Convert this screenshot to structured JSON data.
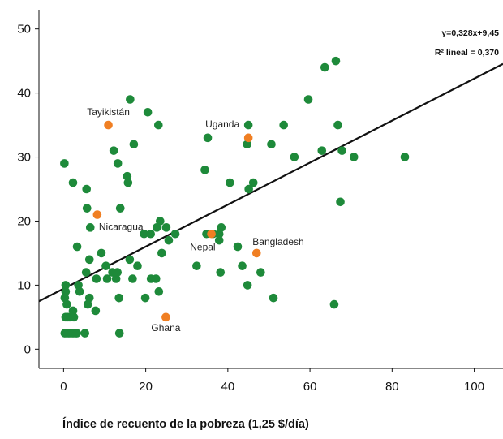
{
  "chart_data": {
    "type": "scatter",
    "xlabel": "Índice de recuento de la pobreza (1,25 $/día)",
    "ylabel": "",
    "xlim": [
      -6,
      107
    ],
    "ylim": [
      -3,
      53
    ],
    "xticks": [
      0,
      20,
      40,
      60,
      80,
      100
    ],
    "yticks": [
      0,
      10,
      20,
      30,
      40,
      50
    ],
    "grid": false,
    "regression": {
      "slope": 0.328,
      "intercept": 9.45,
      "equation": "y=0,328x+9,45",
      "r2_label": "R² lineal = 0,370"
    },
    "colors": {
      "points": "#1e8a3a",
      "highlight": "#f07f23",
      "line": "#111111"
    },
    "highlighted": [
      {
        "label": "Tayikistán",
        "x": 10.9,
        "y": 35
      },
      {
        "label": "Uganda",
        "x": 45,
        "y": 33
      },
      {
        "label": "Nicaragua",
        "x": 8.2,
        "y": 21
      },
      {
        "label": "Nepal",
        "x": 36,
        "y": 18
      },
      {
        "label": "Bangladesh",
        "x": 47,
        "y": 15
      },
      {
        "label": "Ghana",
        "x": 24.9,
        "y": 5
      }
    ],
    "points": [
      [
        0.2,
        29
      ],
      [
        0.5,
        10
      ],
      [
        0.5,
        9
      ],
      [
        0.3,
        8
      ],
      [
        0.8,
        7
      ],
      [
        0.5,
        5
      ],
      [
        1,
        5
      ],
      [
        1.5,
        5
      ],
      [
        2.5,
        5
      ],
      [
        2.3,
        6
      ],
      [
        0.3,
        2.5
      ],
      [
        0.8,
        2.5
      ],
      [
        1.3,
        2.5
      ],
      [
        1.8,
        2.5
      ],
      [
        2.3,
        2.5
      ],
      [
        2.8,
        2.5
      ],
      [
        3.2,
        2.5
      ],
      [
        5.2,
        2.5
      ],
      [
        13.6,
        2.5
      ],
      [
        2.3,
        26
      ],
      [
        3.3,
        16
      ],
      [
        3.6,
        10
      ],
      [
        3.9,
        9
      ],
      [
        5.6,
        25
      ],
      [
        5.7,
        22
      ],
      [
        5.5,
        12
      ],
      [
        6.3,
        14
      ],
      [
        6.3,
        8
      ],
      [
        5.9,
        7
      ],
      [
        6.5,
        19
      ],
      [
        8,
        11
      ],
      [
        7.8,
        6
      ],
      [
        9.2,
        15
      ],
      [
        10.3,
        13
      ],
      [
        10.6,
        11
      ],
      [
        11.9,
        12
      ],
      [
        12.2,
        31
      ],
      [
        13.2,
        29
      ],
      [
        13.8,
        22
      ],
      [
        12.8,
        11
      ],
      [
        13.1,
        12
      ],
      [
        13.5,
        8
      ],
      [
        15.5,
        27
      ],
      [
        15.7,
        26
      ],
      [
        16.2,
        39
      ],
      [
        16.1,
        14
      ],
      [
        17.1,
        32
      ],
      [
        16.8,
        11
      ],
      [
        18,
        13
      ],
      [
        19.6,
        18
      ],
      [
        19.9,
        8
      ],
      [
        20.5,
        37
      ],
      [
        21.2,
        18
      ],
      [
        21.3,
        11
      ],
      [
        22.5,
        11
      ],
      [
        22.7,
        19
      ],
      [
        23.1,
        35
      ],
      [
        23.2,
        9
      ],
      [
        23.5,
        20
      ],
      [
        23.9,
        15
      ],
      [
        25,
        19
      ],
      [
        25.6,
        17
      ],
      [
        27.2,
        18
      ],
      [
        32.4,
        13
      ],
      [
        34.4,
        28
      ],
      [
        34.8,
        18
      ],
      [
        35.1,
        33
      ],
      [
        36.4,
        18
      ],
      [
        37.9,
        17
      ],
      [
        37.9,
        18
      ],
      [
        38.2,
        12
      ],
      [
        38.4,
        19
      ],
      [
        40.5,
        26
      ],
      [
        42.4,
        16
      ],
      [
        43.5,
        13
      ],
      [
        44.7,
        32
      ],
      [
        45,
        35
      ],
      [
        44.8,
        10
      ],
      [
        45.1,
        25
      ],
      [
        46.2,
        26
      ],
      [
        48,
        12
      ],
      [
        50.6,
        32
      ],
      [
        51.1,
        8
      ],
      [
        53.6,
        35
      ],
      [
        56.2,
        30
      ],
      [
        59.6,
        39
      ],
      [
        62.9,
        31
      ],
      [
        63.6,
        44
      ],
      [
        65.9,
        7
      ],
      [
        66.3,
        45
      ],
      [
        66.8,
        35
      ],
      [
        67.4,
        23
      ],
      [
        67.8,
        31
      ],
      [
        70.7,
        30
      ],
      [
        83.1,
        30
      ]
    ]
  }
}
